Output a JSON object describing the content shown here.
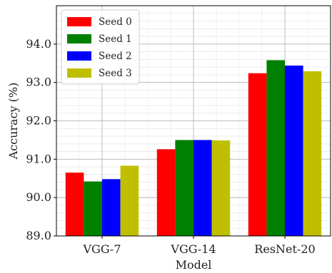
{
  "chart_data": {
    "type": "bar",
    "title": "",
    "xlabel": "Model",
    "ylabel": "Accuracy (%)",
    "categories": [
      "VGG-7",
      "VGG-14",
      "ResNet-20"
    ],
    "ylim": [
      89.0,
      95.0
    ],
    "yticks": [
      "89.0",
      "90.0",
      "91.0",
      "92.0",
      "93.0",
      "94.0"
    ],
    "grid": true,
    "legend_position": "top-left",
    "series": [
      {
        "name": "Seed 0",
        "color": "#ff0000",
        "values": [
          90.65,
          91.26,
          93.24
        ]
      },
      {
        "name": "Seed 1",
        "color": "#008000",
        "values": [
          90.42,
          91.5,
          93.58
        ]
      },
      {
        "name": "Seed 2",
        "color": "#0000ff",
        "values": [
          90.48,
          91.5,
          93.44
        ]
      },
      {
        "name": "Seed 3",
        "color": "#bfbf00",
        "values": [
          90.83,
          91.49,
          93.29
        ]
      }
    ]
  }
}
